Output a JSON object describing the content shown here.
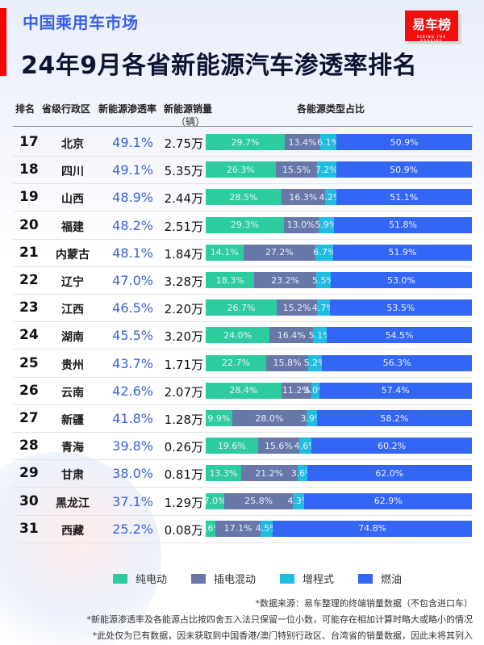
{
  "header": {
    "subtitle": "中国乘用车市场",
    "title": "24年9月各省新能源汽车渗透率排名",
    "logo": "易车榜",
    "logo_tag": "RIDING THE RANKING"
  },
  "columns": {
    "rank": "排名",
    "province": "省级行政区",
    "rate": "新能源渗透率",
    "sales": "新能源销量",
    "sales_unit": "（辆）",
    "share": "各能源类型占比"
  },
  "legend": {
    "bev": "纯电动",
    "phev": "插电混动",
    "erev": "增程式",
    "ice": "燃油"
  },
  "colors": {
    "bev": "#2dcc9f",
    "phev": "#6677a8",
    "erev": "#1ebde0",
    "ice": "#3366f5",
    "rate_text": "#3a63d8",
    "accent": "#ff0000"
  },
  "notes": [
    "*数据来源：易车整理的终端销量数据（不包含进口车）",
    "*新能源渗透率及各能源占比按四舍五入法只保留一位小数，可能存在相加计算时略大或略小的情况",
    "*此处仅为已有数据，因未获取到中国香港/澳门特别行政区、台湾省的销量数据，因此未将其列入"
  ],
  "rows": [
    {
      "rank": "17",
      "province": "北京",
      "rate": "49.1%",
      "sales": "2.75万",
      "bev": "29.7%",
      "phev": "13.4%",
      "erev": "6.1%",
      "ice": "50.9%"
    },
    {
      "rank": "18",
      "province": "四川",
      "rate": "49.1%",
      "sales": "5.35万",
      "bev": "26.3%",
      "phev": "15.5%",
      "erev": "7.2%",
      "ice": "50.9%"
    },
    {
      "rank": "19",
      "province": "山西",
      "rate": "48.9%",
      "sales": "2.44万",
      "bev": "28.5%",
      "phev": "16.3%",
      "erev": "4.2%",
      "ice": "51.1%"
    },
    {
      "rank": "20",
      "province": "福建",
      "rate": "48.2%",
      "sales": "2.51万",
      "bev": "29.3%",
      "phev": "13.0%",
      "erev": "5.9%",
      "ice": "51.8%"
    },
    {
      "rank": "21",
      "province": "内蒙古",
      "rate": "48.1%",
      "sales": "1.84万",
      "bev": "14.1%",
      "phev": "27.2%",
      "erev": "6.7%",
      "ice": "51.9%"
    },
    {
      "rank": "22",
      "province": "辽宁",
      "rate": "47.0%",
      "sales": "3.28万",
      "bev": "18.3%",
      "phev": "23.2%",
      "erev": "5.5%",
      "ice": "53.0%"
    },
    {
      "rank": "23",
      "province": "江西",
      "rate": "46.5%",
      "sales": "2.20万",
      "bev": "26.7%",
      "phev": "15.2%",
      "erev": "4.7%",
      "ice": "53.5%"
    },
    {
      "rank": "24",
      "province": "湖南",
      "rate": "45.5%",
      "sales": "3.20万",
      "bev": "24.0%",
      "phev": "16.4%",
      "erev": "5.1%",
      "ice": "54.5%"
    },
    {
      "rank": "25",
      "province": "贵州",
      "rate": "43.7%",
      "sales": "1.71万",
      "bev": "22.7%",
      "phev": "15.8%",
      "erev": "5.2%",
      "ice": "56.3%"
    },
    {
      "rank": "26",
      "province": "云南",
      "rate": "42.6%",
      "sales": "2.07万",
      "bev": "28.4%",
      "phev": "11.2%",
      "erev": "3.0%",
      "ice": "57.4%"
    },
    {
      "rank": "27",
      "province": "新疆",
      "rate": "41.8%",
      "sales": "1.28万",
      "bev": "9.9%",
      "phev": "28.0%",
      "erev": "3.9%",
      "ice": "58.2%"
    },
    {
      "rank": "28",
      "province": "青海",
      "rate": "39.8%",
      "sales": "0.26万",
      "bev": "19.6%",
      "phev": "15.6%",
      "erev": "4.6%",
      "ice": "60.2%"
    },
    {
      "rank": "29",
      "province": "甘肃",
      "rate": "38.0%",
      "sales": "0.81万",
      "bev": "13.3%",
      "phev": "21.2%",
      "erev": "3.6%",
      "ice": "62.0%"
    },
    {
      "rank": "30",
      "province": "黑龙江",
      "rate": "37.1%",
      "sales": "1.29万",
      "bev": "7.0%",
      "phev": "25.8%",
      "erev": "4.3%",
      "ice": "62.9%"
    },
    {
      "rank": "31",
      "province": "西藏",
      "rate": "25.2%",
      "sales": "0.08万",
      "bev": "3.6%",
      "phev": "17.1%",
      "erev": "4.5%",
      "ice": "74.8%"
    }
  ],
  "chart_data": {
    "type": "bar",
    "orientation": "horizontal-stacked-100",
    "title": "24年9月各省新能源汽车渗透率排名",
    "subtitle": "中国乘用车市场",
    "categories": [
      "北京",
      "四川",
      "山西",
      "福建",
      "内蒙古",
      "辽宁",
      "江西",
      "湖南",
      "贵州",
      "云南",
      "新疆",
      "青海",
      "甘肃",
      "黑龙江",
      "西藏"
    ],
    "ranks": [
      17,
      18,
      19,
      20,
      21,
      22,
      23,
      24,
      25,
      26,
      27,
      28,
      29,
      30,
      31
    ],
    "penetration_rate_pct": [
      49.1,
      49.1,
      48.9,
      48.2,
      48.1,
      47.0,
      46.5,
      45.5,
      43.7,
      42.6,
      41.8,
      39.8,
      38.0,
      37.1,
      25.2
    ],
    "nev_sales_10k": [
      2.75,
      5.35,
      2.44,
      2.51,
      1.84,
      3.28,
      2.2,
      3.2,
      1.71,
      2.07,
      1.28,
      0.26,
      0.81,
      1.29,
      0.08
    ],
    "series": [
      {
        "name": "纯电动",
        "values": [
          29.7,
          26.3,
          28.5,
          29.3,
          14.1,
          18.3,
          26.7,
          24.0,
          22.7,
          28.4,
          9.9,
          19.6,
          13.3,
          7.0,
          3.6
        ]
      },
      {
        "name": "插电混动",
        "values": [
          13.4,
          15.5,
          16.3,
          13.0,
          27.2,
          23.2,
          15.2,
          16.4,
          15.8,
          11.2,
          28.0,
          15.6,
          21.2,
          25.8,
          17.1
        ]
      },
      {
        "name": "增程式",
        "values": [
          6.1,
          7.2,
          4.2,
          5.9,
          6.7,
          5.5,
          4.7,
          5.1,
          5.2,
          3.0,
          3.9,
          4.6,
          3.6,
          4.3,
          4.5
        ]
      },
      {
        "name": "燃油",
        "values": [
          50.9,
          50.9,
          51.1,
          51.8,
          51.9,
          53.0,
          53.5,
          54.5,
          56.3,
          57.4,
          58.2,
          60.2,
          62.0,
          62.9,
          74.8
        ]
      }
    ],
    "xlabel": "各能源类型占比",
    "ylabel": "省级行政区",
    "xlim": [
      0,
      100
    ],
    "legend_position": "bottom",
    "grid": false
  }
}
